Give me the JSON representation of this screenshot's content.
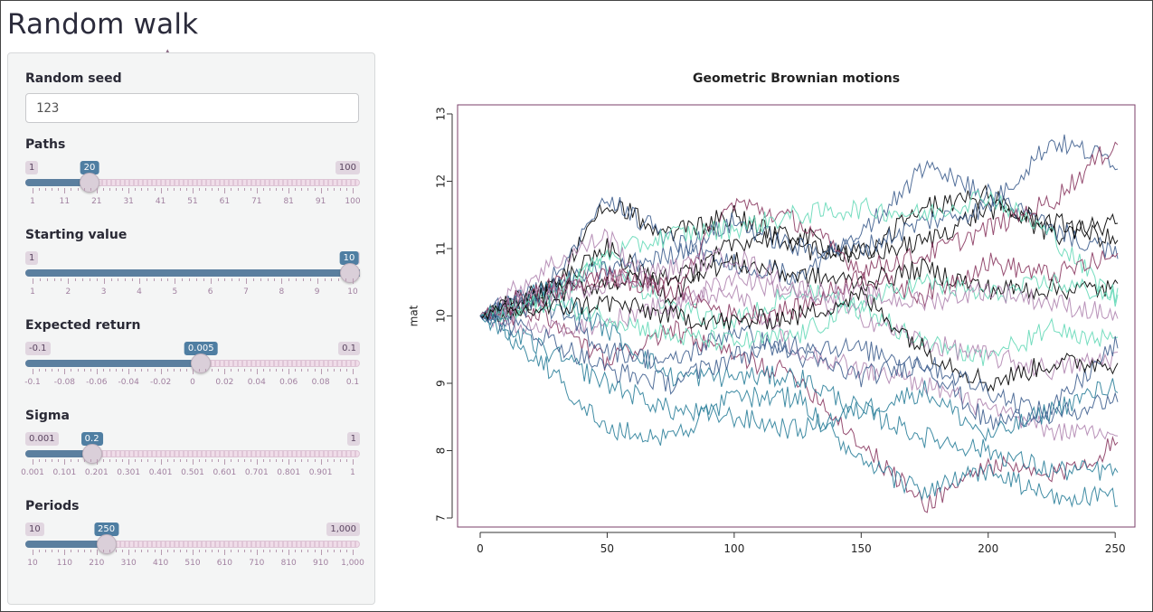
{
  "app": {
    "title": "Random walk"
  },
  "sidebar": {
    "seed": {
      "label": "Random seed",
      "value": "123"
    },
    "sliders": [
      {
        "id": "paths",
        "label": "Paths",
        "min_label": "1",
        "max_label": "100",
        "value_label": "20",
        "fraction": 0.192,
        "ticks": [
          "1",
          "11",
          "21",
          "31",
          "41",
          "51",
          "61",
          "71",
          "81",
          "91",
          "100"
        ]
      },
      {
        "id": "starting_value",
        "label": "Starting value",
        "min_label": "1",
        "max_label": "10",
        "value_label": "10",
        "fraction": 1.0,
        "ticks": [
          "1",
          "2",
          "3",
          "4",
          "5",
          "6",
          "7",
          "8",
          "9",
          "10"
        ]
      },
      {
        "id": "expected_return",
        "label": "Expected return",
        "min_label": "-0.1",
        "max_label": "0.1",
        "value_label": "0.005",
        "fraction": 0.525,
        "ticks": [
          "-0.1",
          "-0.08",
          "-0.06",
          "-0.04",
          "-0.02",
          "0",
          "0.02",
          "0.04",
          "0.06",
          "0.08",
          "0.1"
        ]
      },
      {
        "id": "sigma",
        "label": "Sigma",
        "min_label": "0.001",
        "max_label": "1",
        "value_label": "0.2",
        "fraction": 0.199,
        "ticks": [
          "0.001",
          "0.101",
          "0.201",
          "0.301",
          "0.401",
          "0.501",
          "0.601",
          "0.701",
          "0.801",
          "0.901",
          "1"
        ]
      },
      {
        "id": "periods",
        "label": "Periods",
        "min_label": "10",
        "max_label": "1,000",
        "value_label": "250",
        "fraction": 0.242,
        "ticks": [
          "10",
          "110",
          "210",
          "310",
          "410",
          "510",
          "610",
          "710",
          "810",
          "910",
          "1,000"
        ]
      }
    ]
  },
  "chart_data": {
    "type": "line",
    "title": "Geometric Brownian motions",
    "xlabel": "",
    "ylabel": "mat",
    "xlim": [
      0,
      251
    ],
    "ylim": [
      7,
      13
    ],
    "x_ticks": [
      "0",
      "50",
      "100",
      "150",
      "200",
      "250"
    ],
    "y_ticks": [
      "7",
      "8",
      "9",
      "10",
      "11",
      "12",
      "13"
    ],
    "grid": false,
    "legend": "none",
    "colors": [
      "#000000",
      "#3f5f8f",
      "#8b3a62",
      "#66d9b8",
      "#b085b0",
      "#2b7f9a"
    ],
    "series": [
      {
        "x": [
          0,
          25,
          50,
          75,
          100,
          125,
          150,
          175,
          200,
          225,
          251
        ],
        "values": [
          10,
          10.2,
          11.7,
          11.2,
          11.5,
          11.0,
          10.9,
          11.6,
          11.8,
          11.2,
          11.4
        ]
      },
      {
        "x": [
          0,
          25,
          50,
          75,
          100,
          125,
          150,
          175,
          200,
          225,
          251
        ],
        "values": [
          10,
          10.4,
          11.8,
          11.1,
          10.8,
          10.6,
          11.2,
          12.2,
          11.8,
          11.3,
          10.9
        ]
      },
      {
        "x": [
          0,
          25,
          50,
          75,
          100,
          125,
          150,
          175,
          200,
          225,
          251
        ],
        "values": [
          10,
          10.0,
          9.3,
          9.8,
          9.4,
          9.1,
          8.1,
          7.2,
          7.8,
          7.6,
          8.1
        ]
      },
      {
        "x": [
          0,
          25,
          50,
          75,
          100,
          125,
          150,
          175,
          200,
          225,
          251
        ],
        "values": [
          10,
          10.3,
          10.8,
          10.1,
          9.9,
          10.4,
          10.1,
          9.6,
          9.4,
          9.8,
          9.6
        ]
      },
      {
        "x": [
          0,
          25,
          50,
          75,
          100,
          125,
          150,
          175,
          200,
          225,
          251
        ],
        "values": [
          10,
          9.8,
          9.9,
          10.2,
          10.4,
          9.5,
          9.2,
          9.0,
          8.6,
          8.3,
          8.2
        ]
      },
      {
        "x": [
          0,
          25,
          50,
          75,
          100,
          125,
          150,
          175,
          200,
          225,
          251
        ],
        "values": [
          10,
          9.3,
          8.3,
          8.2,
          8.8,
          8.8,
          7.8,
          7.4,
          7.7,
          7.3,
          7.3
        ]
      },
      {
        "x": [
          0,
          25,
          50,
          75,
          100,
          125,
          150,
          175,
          200,
          225,
          251
        ],
        "values": [
          10,
          10.4,
          11.0,
          10.3,
          11.1,
          11.2,
          10.9,
          11.1,
          11.6,
          11.4,
          11.1
        ]
      },
      {
        "x": [
          0,
          25,
          50,
          75,
          100,
          125,
          150,
          175,
          200,
          225,
          251
        ],
        "values": [
          10,
          10.4,
          10.7,
          10.9,
          11.4,
          11.0,
          11.0,
          11.4,
          11.6,
          12.6,
          12.3
        ]
      },
      {
        "x": [
          0,
          25,
          50,
          75,
          100,
          125,
          150,
          175,
          200,
          225,
          251
        ],
        "values": [
          10,
          10.4,
          10.6,
          10.4,
          11.7,
          11.4,
          10.7,
          10.9,
          11.3,
          11.7,
          12.6
        ]
      },
      {
        "x": [
          0,
          25,
          50,
          75,
          100,
          125,
          150,
          175,
          200,
          225,
          251
        ],
        "values": [
          10,
          10.2,
          10.9,
          11.2,
          11.3,
          11.5,
          11.6,
          11.5,
          11.8,
          11.2,
          10.2
        ]
      },
      {
        "x": [
          0,
          25,
          50,
          75,
          100,
          125,
          150,
          175,
          200,
          225,
          251
        ],
        "values": [
          10,
          10.7,
          11.2,
          10.1,
          10.6,
          10.3,
          10.0,
          9.6,
          9.4,
          9.2,
          9.4
        ]
      },
      {
        "x": [
          0,
          25,
          50,
          75,
          100,
          125,
          150,
          175,
          200,
          225,
          251
        ],
        "values": [
          10,
          10.4,
          9.8,
          9.1,
          9.1,
          9.1,
          8.6,
          8.2,
          8.0,
          7.7,
          7.7
        ]
      },
      {
        "x": [
          0,
          25,
          50,
          75,
          100,
          125,
          150,
          175,
          200,
          225,
          251
        ],
        "values": [
          10,
          10.3,
          10.5,
          10.6,
          10.8,
          10.6,
          10.5,
          10.7,
          10.4,
          10.4,
          10.4
        ]
      },
      {
        "x": [
          0,
          25,
          50,
          75,
          100,
          125,
          150,
          175,
          200,
          225,
          251
        ],
        "values": [
          10,
          10.2,
          9.5,
          9.3,
          9.8,
          9.4,
          9.1,
          9.3,
          8.4,
          8.6,
          9.6
        ]
      },
      {
        "x": [
          0,
          25,
          50,
          75,
          100,
          125,
          150,
          175,
          200,
          225,
          251
        ],
        "values": [
          10,
          10.3,
          10.6,
          10.4,
          10.0,
          10.1,
          10.6,
          10.3,
          10.8,
          10.6,
          10.9
        ]
      },
      {
        "x": [
          0,
          25,
          50,
          75,
          100,
          125,
          150,
          175,
          200,
          225,
          251
        ],
        "values": [
          10,
          10.2,
          10.0,
          9.7,
          9.6,
          9.7,
          10.2,
          10.5,
          10.3,
          10.5,
          10.3
        ]
      },
      {
        "x": [
          0,
          25,
          50,
          75,
          100,
          125,
          150,
          175,
          200,
          225,
          251
        ],
        "values": [
          10,
          10.3,
          10.5,
          10.7,
          10.9,
          10.4,
          10.3,
          10.2,
          10.4,
          10.2,
          10.0
        ]
      },
      {
        "x": [
          0,
          25,
          50,
          75,
          100,
          125,
          150,
          175,
          200,
          225,
          251
        ],
        "values": [
          10,
          9.5,
          9.0,
          8.6,
          8.5,
          8.3,
          8.6,
          8.9,
          8.2,
          8.6,
          9.0
        ]
      },
      {
        "x": [
          0,
          25,
          50,
          75,
          100,
          125,
          150,
          175,
          200,
          225,
          251
        ],
        "values": [
          10,
          10.1,
          10.2,
          10.0,
          9.9,
          10.0,
          10.3,
          9.5,
          9.0,
          9.3,
          9.3
        ]
      },
      {
        "x": [
          0,
          25,
          50,
          75,
          100,
          125,
          150,
          175,
          200,
          225,
          251
        ],
        "values": [
          10,
          9.7,
          9.2,
          9.0,
          9.4,
          9.6,
          9.5,
          9.3,
          8.9,
          8.5,
          8.8
        ]
      }
    ]
  }
}
